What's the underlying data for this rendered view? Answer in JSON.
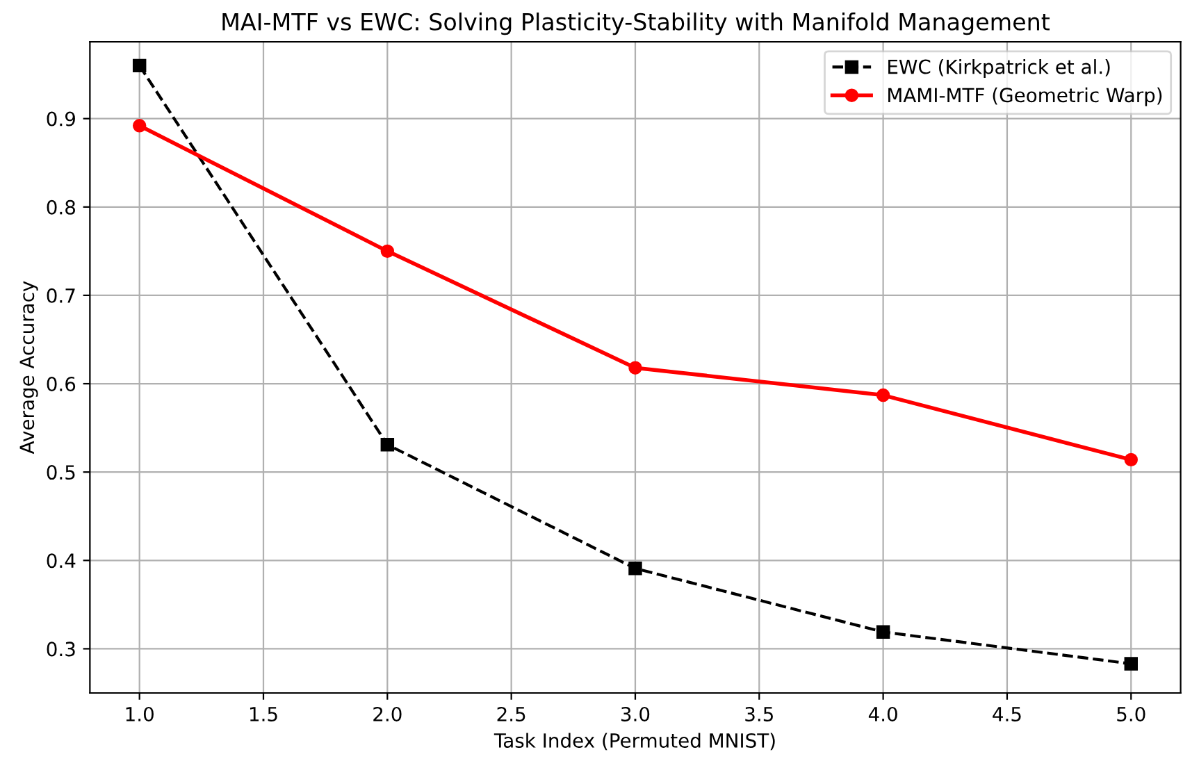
{
  "chart_data": {
    "type": "line",
    "title": "MAI-MTF vs EWC: Solving Plasticity-Stability with Manifold Management",
    "xlabel": "Task Index (Permuted MNIST)",
    "ylabel": "Average Accuracy",
    "x": [
      1,
      2,
      3,
      4,
      5
    ],
    "series": [
      {
        "name": "EWC (Kirkpatrick et al.)",
        "color": "#000000",
        "marker": "square",
        "line_style": "dashed",
        "values": [
          0.96,
          0.531,
          0.391,
          0.319,
          0.283
        ]
      },
      {
        "name": "MAMI-MTF (Geometric Warp)",
        "color": "#ff0000",
        "marker": "circle",
        "line_style": "solid",
        "values": [
          0.892,
          0.75,
          0.618,
          0.587,
          0.514
        ]
      }
    ],
    "xlim": [
      0.8,
      5.2
    ],
    "xticks": [
      {
        "value": 1,
        "label": "1.0"
      },
      {
        "value": 1.5,
        "label": "1.5"
      },
      {
        "value": 2,
        "label": "2.0"
      },
      {
        "value": 2.5,
        "label": "2.5"
      },
      {
        "value": 3,
        "label": "3.0"
      },
      {
        "value": 3.5,
        "label": "3.5"
      },
      {
        "value": 4,
        "label": "4.0"
      },
      {
        "value": 4.5,
        "label": "4.5"
      },
      {
        "value": 5,
        "label": "5.0"
      }
    ],
    "ylim": [
      0.25,
      0.987
    ],
    "yticks": [
      0.3,
      0.4,
      0.5,
      0.6,
      0.7,
      0.8,
      0.9
    ],
    "grid": true,
    "legend": "top right"
  }
}
